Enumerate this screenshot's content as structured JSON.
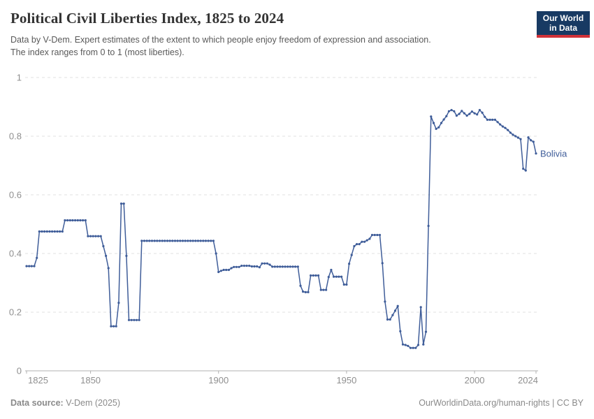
{
  "header": {
    "title": "Political Civil Liberties Index, 1825 to 2024",
    "subtitle_line1": "Data by V-Dem. Expert estimates of the extent to which people enjoy freedom of expression and association.",
    "subtitle_line2": "The index ranges from 0 to 1 (most liberties).",
    "logo": {
      "line1": "Our World",
      "line2": "in Data",
      "bg_color": "#183a63",
      "accent_color": "#d13239"
    }
  },
  "chart_data": {
    "type": "line",
    "title": "Political Civil Liberties Index, 1825 to 2024",
    "xlabel": "",
    "ylabel": "",
    "xlim": [
      1825,
      2024
    ],
    "ylim": [
      0,
      1
    ],
    "grid": "dashed-horizontal",
    "legend": "end-of-line-label",
    "x_ticks": [
      1825,
      1850,
      1900,
      1950,
      2000,
      2024
    ],
    "y_ticks": [
      0,
      0.2,
      0.4,
      0.6,
      0.8,
      1
    ],
    "y_tick_labels": [
      "0",
      "0.2",
      "0.4",
      "0.6",
      "0.8",
      "1"
    ],
    "colors": {
      "line": "#3f5d99",
      "grid": "#e2e2e2",
      "axis": "#b0b0b0",
      "tick_text": "#8f8f8f"
    },
    "series": [
      {
        "name": "Bolivia",
        "color": "#3f5d99",
        "start_year": 1825,
        "values": [
          0.357,
          0.357,
          0.357,
          0.357,
          0.385,
          0.475,
          0.475,
          0.475,
          0.475,
          0.475,
          0.475,
          0.475,
          0.475,
          0.475,
          0.475,
          0.513,
          0.513,
          0.513,
          0.513,
          0.513,
          0.513,
          0.513,
          0.513,
          0.513,
          0.459,
          0.459,
          0.459,
          0.459,
          0.459,
          0.459,
          0.425,
          0.392,
          0.35,
          0.152,
          0.152,
          0.152,
          0.232,
          0.57,
          0.57,
          0.392,
          0.173,
          0.173,
          0.173,
          0.173,
          0.173,
          0.443,
          0.443,
          0.443,
          0.443,
          0.443,
          0.443,
          0.443,
          0.443,
          0.443,
          0.443,
          0.443,
          0.443,
          0.443,
          0.443,
          0.443,
          0.443,
          0.443,
          0.443,
          0.443,
          0.443,
          0.443,
          0.443,
          0.443,
          0.443,
          0.443,
          0.443,
          0.443,
          0.443,
          0.443,
          0.4,
          0.337,
          0.341,
          0.344,
          0.344,
          0.344,
          0.35,
          0.354,
          0.354,
          0.354,
          0.358,
          0.358,
          0.358,
          0.358,
          0.356,
          0.356,
          0.356,
          0.353,
          0.366,
          0.366,
          0.366,
          0.362,
          0.355,
          0.355,
          0.355,
          0.355,
          0.355,
          0.355,
          0.355,
          0.355,
          0.355,
          0.355,
          0.355,
          0.29,
          0.27,
          0.268,
          0.268,
          0.325,
          0.325,
          0.325,
          0.325,
          0.276,
          0.276,
          0.276,
          0.32,
          0.344,
          0.321,
          0.321,
          0.321,
          0.321,
          0.294,
          0.294,
          0.365,
          0.395,
          0.425,
          0.432,
          0.432,
          0.44,
          0.44,
          0.445,
          0.45,
          0.463,
          0.463,
          0.463,
          0.463,
          0.367,
          0.236,
          0.175,
          0.175,
          0.19,
          0.205,
          0.221,
          0.135,
          0.09,
          0.088,
          0.085,
          0.078,
          0.078,
          0.078,
          0.088,
          0.217,
          0.09,
          0.133,
          0.494,
          0.867,
          0.845,
          0.825,
          0.83,
          0.845,
          0.857,
          0.868,
          0.885,
          0.889,
          0.885,
          0.87,
          0.876,
          0.886,
          0.878,
          0.87,
          0.876,
          0.884,
          0.878,
          0.874,
          0.889,
          0.88,
          0.866,
          0.856,
          0.856,
          0.856,
          0.856,
          0.848,
          0.84,
          0.833,
          0.828,
          0.821,
          0.812,
          0.805,
          0.8,
          0.795,
          0.79,
          0.689,
          0.683,
          0.796,
          0.786,
          0.781,
          0.741
        ]
      }
    ]
  },
  "footer": {
    "source_label": "Data source:",
    "source_value": " V-Dem (2025)",
    "credit": "OurWorldinData.org/human-rights | CC BY"
  }
}
